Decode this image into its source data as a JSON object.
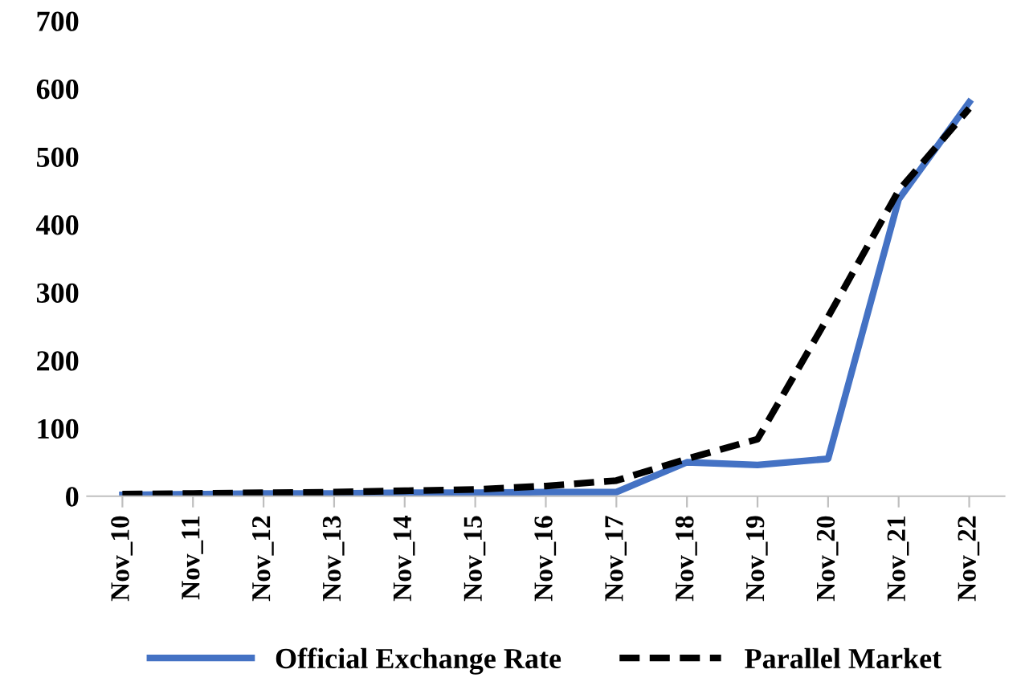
{
  "chart_data": {
    "type": "line",
    "categories": [
      "Nov_10",
      "Nov_11",
      "Nov_12",
      "Nov_13",
      "Nov_14",
      "Nov_15",
      "Nov_16",
      "Nov_17",
      "Nov_18",
      "Nov_19",
      "Nov_20",
      "Nov_21",
      "Nov_22"
    ],
    "series": [
      {
        "name": "Official Exchange Rate",
        "color": "#4472c4",
        "line_style": "solid",
        "values": [
          2,
          3,
          4,
          4,
          5,
          5,
          6,
          6,
          50,
          46,
          55,
          437,
          580
        ]
      },
      {
        "name": "Parallel Market",
        "color": "#000000",
        "line_style": "dashed",
        "values": [
          3,
          4,
          5,
          6,
          8,
          10,
          15,
          23,
          55,
          84,
          264,
          450,
          571
        ]
      }
    ],
    "ylim": [
      0,
      700
    ],
    "yticks": [
      0,
      100,
      200,
      300,
      400,
      500,
      600,
      700
    ],
    "grid": false,
    "legend": "bottom",
    "marker": "none"
  }
}
